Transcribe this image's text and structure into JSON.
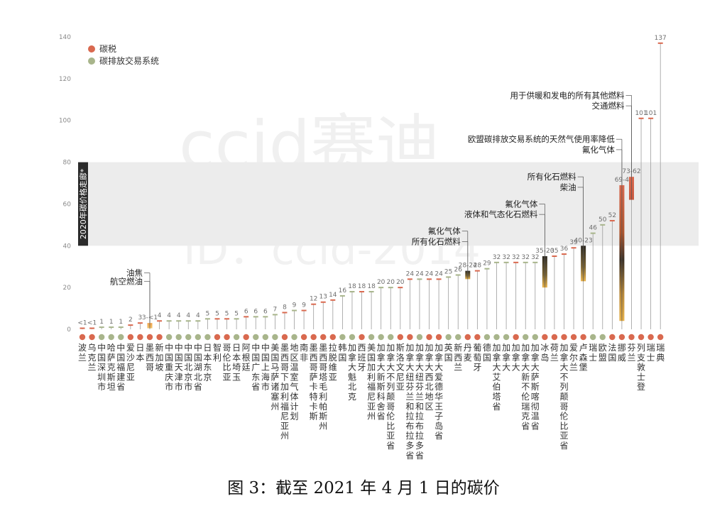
{
  "caption": "图 3：截至 2021 年 4 月 1 日的碳价",
  "watermark": {
    "line1": "ccid赛迪",
    "line2": "ID：ccid-2014"
  },
  "colors": {
    "tax": "#d9694f",
    "ets": "#a8b58b",
    "band": "#ececec",
    "bandLabel": "#2b2b2b",
    "stem": "#9c9c9c"
  },
  "chart_data": {
    "type": "bar",
    "title": "",
    "xlabel": "",
    "ylabel": "",
    "ylim": [
      0,
      140
    ],
    "yticks": [
      0,
      20,
      40,
      60,
      80,
      100,
      120,
      140
    ],
    "grid": false,
    "legend_position": "top-left",
    "legend": [
      {
        "key": "tax",
        "label": "碳税"
      },
      {
        "key": "ets",
        "label": "碳排放交易系统"
      }
    ],
    "band": {
      "from": 40,
      "to": 80,
      "label": "2020年碳价格走廊*"
    },
    "categories": [
      {
        "name": "波兰",
        "type": "tax",
        "value": 0.5,
        "label": "<1"
      },
      {
        "name": "乌克兰",
        "type": "tax",
        "value": 0.5,
        "label": "<1"
      },
      {
        "name": "中国深圳市",
        "type": "ets",
        "value": 1,
        "label": "1"
      },
      {
        "name": "哈萨克斯坦",
        "type": "ets",
        "value": 1,
        "label": "1"
      },
      {
        "name": "中国福建省",
        "type": "ets",
        "value": 1,
        "label": "1"
      },
      {
        "name": "爱沙尼亚",
        "type": "tax",
        "value": 2,
        "label": "2"
      },
      {
        "name": "日本",
        "type": "tax",
        "value": 3,
        "label": "3"
      },
      {
        "name": "墨西哥",
        "type": "tax",
        "value": 3,
        "label": "3-<1",
        "range": [
          0.5,
          3
        ]
      },
      {
        "name": "新加坡",
        "type": "tax",
        "value": 4,
        "label": "4"
      },
      {
        "name": "中国重庆市",
        "type": "ets",
        "value": 4,
        "label": "4"
      },
      {
        "name": "中国天津市",
        "type": "ets",
        "value": 4,
        "label": "4"
      },
      {
        "name": "中国北京市",
        "type": "ets",
        "value": 4,
        "label": "4"
      },
      {
        "name": "中国湖北省",
        "type": "ets",
        "value": 4,
        "label": "4"
      },
      {
        "name": "日本东京",
        "type": "ets",
        "value": 5,
        "label": "5"
      },
      {
        "name": "智利",
        "type": "tax",
        "value": 5,
        "label": "5"
      },
      {
        "name": "哥伦比亚",
        "type": "tax",
        "value": 5,
        "label": "5"
      },
      {
        "name": "日本埼玉",
        "type": "ets",
        "value": 5,
        "label": "5"
      },
      {
        "name": "阿根廷",
        "type": "tax",
        "value": 6,
        "label": "6"
      },
      {
        "name": "中国广东省",
        "type": "ets",
        "value": 6,
        "label": "6"
      },
      {
        "name": "中国上海市",
        "type": "ets",
        "value": 6,
        "label": "6"
      },
      {
        "name": "美国马萨诸塞州",
        "type": "ets",
        "value": 7,
        "label": "7"
      },
      {
        "name": "墨西哥下加利福尼亚州",
        "type": "tax",
        "value": 8,
        "label": "8"
      },
      {
        "name": "地区温室气体计划",
        "type": "ets",
        "value": 9,
        "label": "9"
      },
      {
        "name": "南非",
        "type": "tax",
        "value": 9,
        "label": "9"
      },
      {
        "name": "墨西哥萨卡特卡斯",
        "type": "tax",
        "value": 12,
        "label": "12"
      },
      {
        "name": "墨西哥塔毛利帕斯州",
        "type": "tax",
        "value": 13,
        "label": "13"
      },
      {
        "name": "拉脱维亚",
        "type": "tax",
        "value": 14,
        "label": "14"
      },
      {
        "name": "韩国",
        "type": "ets",
        "value": 16,
        "label": "16"
      },
      {
        "name": "加拿大魁北克",
        "type": "ets",
        "value": 18,
        "label": "18"
      },
      {
        "name": "西班牙",
        "type": "tax",
        "value": 18,
        "label": "18"
      },
      {
        "name": "美国加利福尼亚州",
        "type": "ets",
        "value": 18,
        "label": "18"
      },
      {
        "name": "加拿大新斯科舍省",
        "type": "ets",
        "value": 20,
        "label": "20"
      },
      {
        "name": "加拿大不列颠哥伦比亚省",
        "type": "ets",
        "value": 20,
        "label": "20"
      },
      {
        "name": "斯洛文尼亚",
        "type": "tax",
        "value": 20,
        "label": "20"
      },
      {
        "name": "加拿大纽芬兰和拉布拉多省",
        "type": "tax",
        "value": 24,
        "label": "24"
      },
      {
        "name": "加拿大纽芬兰和拉布拉多省",
        "type": "ets",
        "value": 24,
        "label": "24"
      },
      {
        "name": "加拿大西北地区",
        "type": "tax",
        "value": 24,
        "label": "24"
      },
      {
        "name": "加拿大爱德华王子岛省",
        "type": "tax",
        "value": 24,
        "label": "24"
      },
      {
        "name": "英国",
        "type": "ets",
        "value": 25,
        "label": "25"
      },
      {
        "name": "新西兰",
        "type": "ets",
        "value": 26,
        "label": "26"
      },
      {
        "name": "丹麦",
        "type": "tax",
        "value": 28,
        "label": "28-24",
        "range": [
          24,
          28
        ]
      },
      {
        "name": "葡萄牙",
        "type": "tax",
        "value": 28,
        "label": "28"
      },
      {
        "name": "德国",
        "type": "ets",
        "value": 29,
        "label": "29"
      },
      {
        "name": "加拿大艾伯塔省",
        "type": "ets",
        "value": 32,
        "label": "32"
      },
      {
        "name": "加拿大",
        "type": "ets",
        "value": 32,
        "label": "32"
      },
      {
        "name": "加拿大",
        "type": "tax",
        "value": 32,
        "label": "32"
      },
      {
        "name": "加拿大新不伦瑞克省",
        "type": "ets",
        "value": 32,
        "label": "32"
      },
      {
        "name": "加拿大萨斯喀彻温省",
        "type": "ets",
        "value": 32,
        "label": "32"
      },
      {
        "name": "冰岛",
        "type": "tax",
        "value": 35,
        "label": "35-20",
        "range": [
          20,
          35
        ]
      },
      {
        "name": "荷兰",
        "type": "tax",
        "value": 35,
        "label": "35"
      },
      {
        "name": "加拿大不列颠哥伦比亚省",
        "type": "tax",
        "value": 36,
        "label": "36"
      },
      {
        "name": "爱尔兰",
        "type": "tax",
        "value": 39,
        "label": "39"
      },
      {
        "name": "卢森堡",
        "type": "tax",
        "value": 40,
        "label": "40-23",
        "range": [
          23,
          40
        ]
      },
      {
        "name": "瑞士",
        "type": "ets",
        "value": 46,
        "label": "46"
      },
      {
        "name": "欧盟",
        "type": "ets",
        "value": 50,
        "label": "50"
      },
      {
        "name": "法国",
        "type": "tax",
        "value": 52,
        "label": "52"
      },
      {
        "name": "挪威",
        "type": "tax",
        "value": 69,
        "label": "69-4",
        "range": [
          4,
          69
        ]
      },
      {
        "name": "芬兰",
        "type": "tax",
        "value": 73,
        "label": "73-62",
        "range": [
          62,
          73
        ]
      },
      {
        "name": "列支敦士登",
        "type": "tax",
        "value": 101,
        "label": "101"
      },
      {
        "name": "瑞士",
        "type": "tax",
        "value": 101,
        "label": "101"
      },
      {
        "name": "瑞典",
        "type": "tax",
        "value": 137,
        "label": "137"
      }
    ],
    "annotations": [
      {
        "text": "油焦",
        "target": 7,
        "at": 3,
        "level": 27
      },
      {
        "text": "航空燃油",
        "target": 7,
        "at": 0.5,
        "level": 23
      },
      {
        "text": "氟化气体",
        "target": 40,
        "at": 28,
        "level": 47
      },
      {
        "text": "所有化石燃料",
        "target": 40,
        "at": 24,
        "level": 42
      },
      {
        "text": "氟化气体",
        "target": 48,
        "at": 35,
        "level": 60
      },
      {
        "text": "液体和气态化石燃料",
        "target": 48,
        "at": 20,
        "level": 55
      },
      {
        "text": "所有化石燃料",
        "target": 52,
        "at": 40,
        "level": 73
      },
      {
        "text": "柴油",
        "target": 52,
        "at": 23,
        "level": 68
      },
      {
        "text": "欧盟碳排放交易系统的天然气使用率降低",
        "target": 56,
        "at": 69,
        "level": 91
      },
      {
        "text": "氟化气体",
        "target": 56,
        "at": 4,
        "level": 86
      },
      {
        "text": "用于供暖和发电的所有其他燃料",
        "target": 57,
        "at": 73,
        "level": 112
      },
      {
        "text": "交通燃料",
        "target": 57,
        "at": 62,
        "level": 107
      }
    ]
  }
}
